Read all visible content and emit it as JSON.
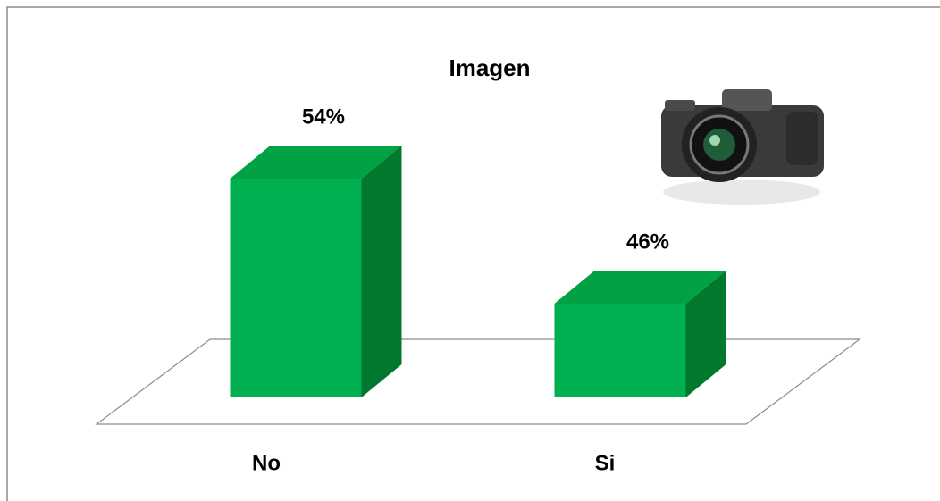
{
  "chart_data": {
    "type": "bar3d",
    "title": "Imagen",
    "categories": [
      "No",
      "Si"
    ],
    "values": [
      54,
      46
    ],
    "value_labels": [
      "54%",
      "46%"
    ],
    "color": "#00b050",
    "ylim": [
      40,
      56
    ]
  }
}
